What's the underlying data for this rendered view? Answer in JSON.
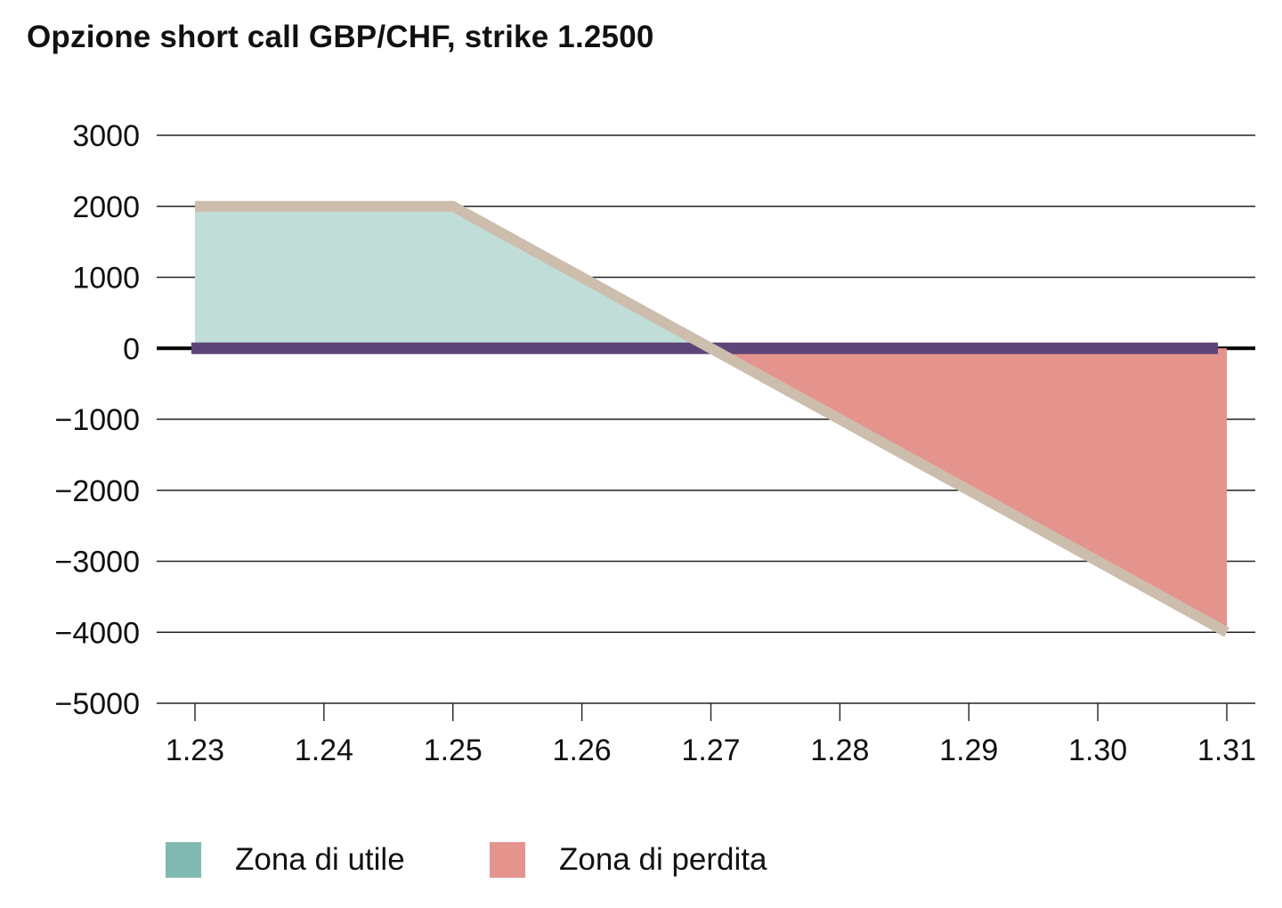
{
  "chart_data": {
    "type": "area",
    "title": "Opzione short call GBP/CHF, strike 1.2500",
    "xlabel": "",
    "ylabel": "",
    "xlim": [
      1.23,
      1.31
    ],
    "ylim": [
      -5000,
      3000
    ],
    "x_ticks": [
      "1.23",
      "1.24",
      "1.25",
      "1.26",
      "1.27",
      "1.28",
      "1.29",
      "1.30",
      "1.31"
    ],
    "y_ticks": [
      3000,
      2000,
      1000,
      0,
      -1000,
      -2000,
      -3000,
      -4000,
      -5000
    ],
    "y_tick_labels": [
      "3000",
      "2000",
      "1000",
      "0",
      "−1000",
      "−2000",
      "−3000",
      "−4000",
      "−5000"
    ],
    "series": [
      {
        "x": [
          1.23,
          1.25,
          1.27,
          1.31
        ],
        "y": [
          2000,
          2000,
          0,
          -4000
        ]
      }
    ],
    "zones": [
      {
        "name": "Zona di utile",
        "x_range": [
          1.23,
          1.27
        ]
      },
      {
        "name": "Zona di perdita",
        "x_range": [
          1.27,
          1.31
        ]
      }
    ],
    "grid": true,
    "legend_position": "bottom-left",
    "colors": {
      "payoff_line": "#cdbdad",
      "gain_zone": "#c0ddd8",
      "loss_zone": "#e4938d",
      "gain_swatch": "#80b9b2",
      "loss_swatch": "#e4938d",
      "zero_band": "#5e4577",
      "grid": "#222222"
    }
  },
  "legend": {
    "items": [
      {
        "label": "Zona di utile",
        "color": "#80b9b2"
      },
      {
        "label": "Zona di perdita",
        "color": "#e4938d"
      }
    ]
  }
}
